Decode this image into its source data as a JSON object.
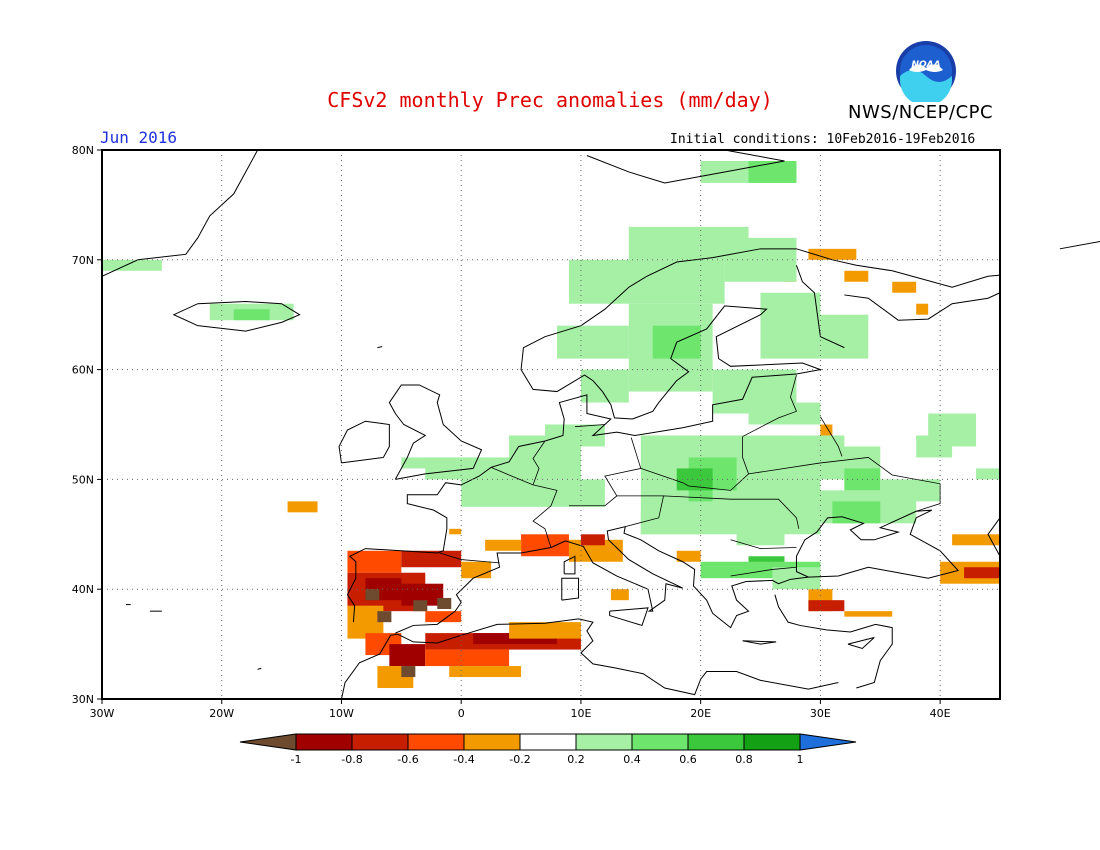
{
  "header": {
    "title": "CFSv2 monthly Prec anomalies (mm/day)",
    "agency": "NWS/NCEP/CPC",
    "logo_text": "NOAA",
    "month": "Jun 2016",
    "initial_conditions": "Initial conditions: 10Feb2016-19Feb2016"
  },
  "map": {
    "lat_labels": [
      "80N",
      "70N",
      "60N",
      "50N",
      "40N",
      "30N"
    ],
    "lon_labels": [
      "30W",
      "20W",
      "10W",
      "0",
      "10E",
      "20E",
      "30E",
      "40E"
    ],
    "grid": "dotted"
  },
  "colorbar": {
    "labels": [
      "-1",
      "-0.8",
      "-0.6",
      "-0.4",
      "-0.2",
      "0.2",
      "0.4",
      "0.6",
      "0.8",
      "1"
    ],
    "colors": [
      "#6e4a2e",
      "#a00000",
      "#c81e00",
      "#ff4a00",
      "#f39a00",
      "#ffffff",
      "#a5f0a5",
      "#6ee66e",
      "#3cc83c",
      "#14a014",
      "#1e6edc"
    ],
    "bin_names": [
      "< -1",
      "-1 to -0.8",
      "-0.8 to -0.6",
      "-0.6 to -0.4",
      "-0.4 to -0.2",
      "-0.2 to 0.2",
      "0.2 to 0.4",
      "0.4 to 0.6",
      "0.6 to 0.8",
      "0.8 to 1",
      "> 1"
    ]
  }
}
